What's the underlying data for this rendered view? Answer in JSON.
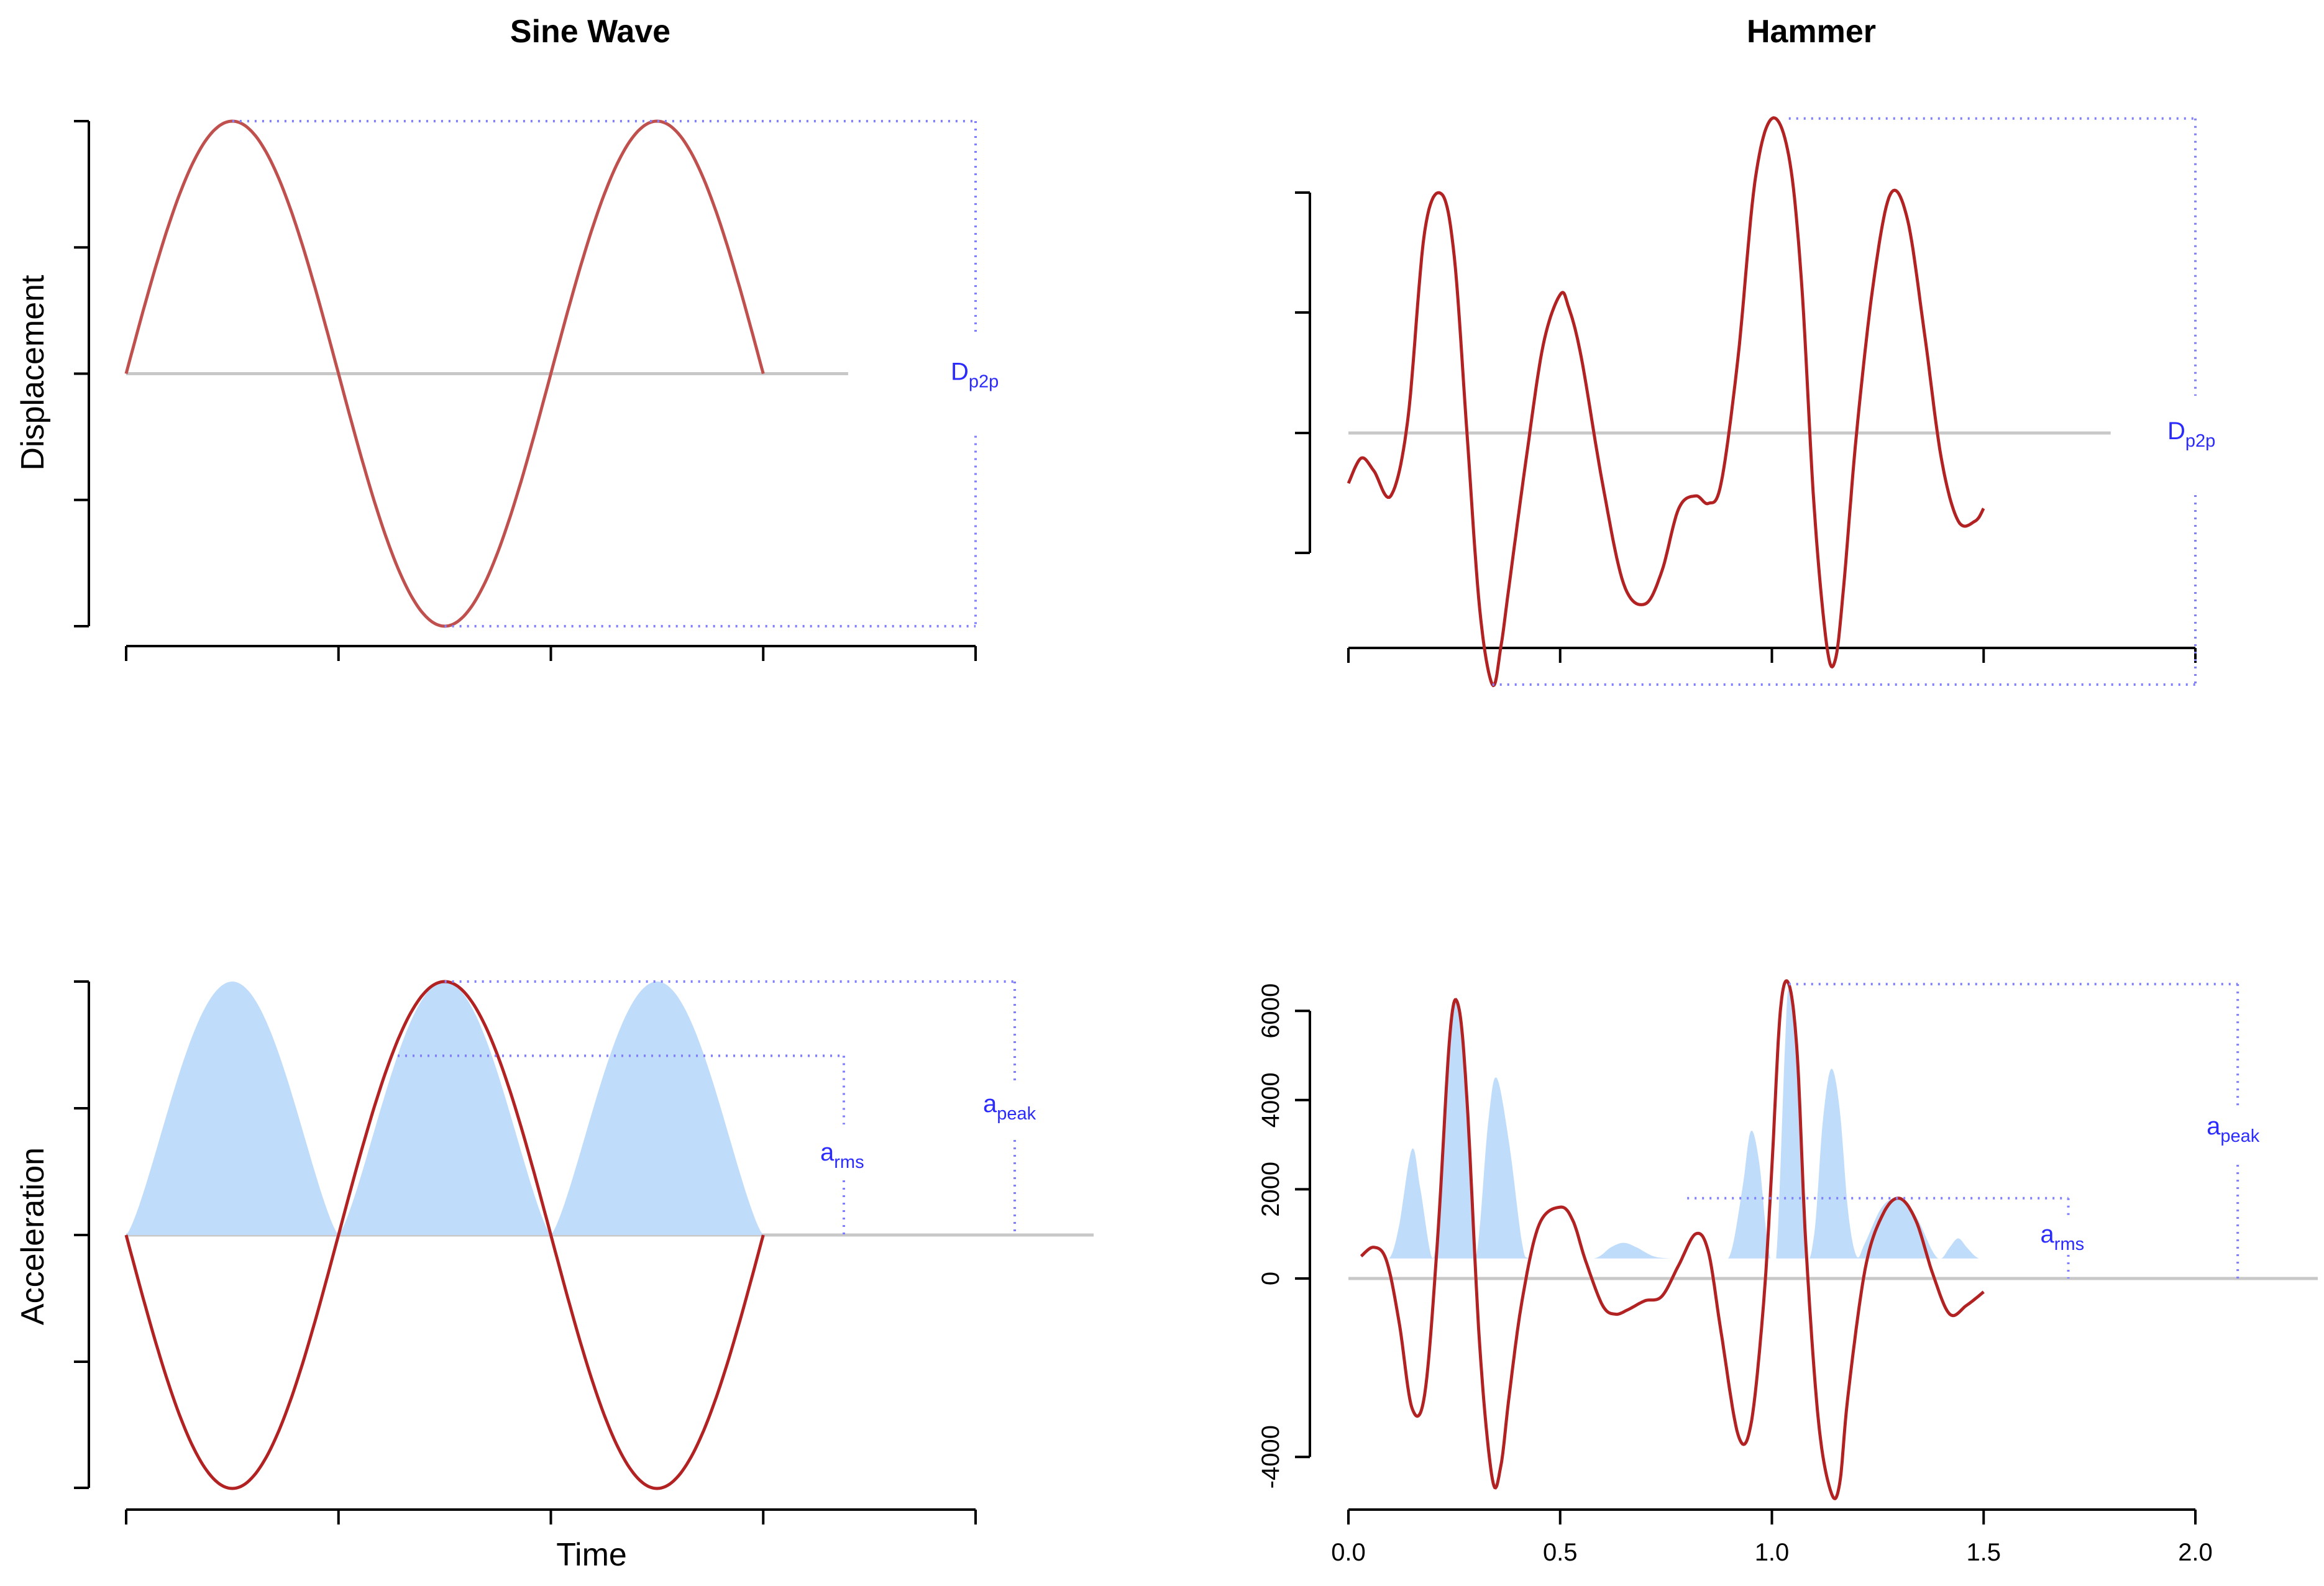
{
  "chart_data": [
    {
      "panel": "top-left",
      "type": "line",
      "title": "Sine Wave",
      "xlabel": "",
      "ylabel": "Displacement",
      "xlim": [
        0,
        2
      ],
      "ylim": [
        -1,
        1
      ],
      "series": [
        {
          "function": "sin",
          "cycles": 1.5,
          "x_range": [
            0,
            1.5
          ]
        }
      ],
      "baseline": 0,
      "annotations": [
        {
          "label": "D",
          "sub": "p2p",
          "kind": "peak-to-peak"
        }
      ]
    },
    {
      "panel": "top-right",
      "type": "line",
      "title": "Hammer",
      "xlabel": "",
      "ylabel": "",
      "xlim": [
        0,
        2
      ],
      "ylim": [
        -1,
        1
      ],
      "baseline": 0,
      "series": [
        {
          "x": [
            0.0,
            0.03,
            0.06,
            0.1,
            0.14,
            0.18,
            0.22,
            0.25,
            0.28,
            0.31,
            0.34,
            0.36,
            0.38,
            0.42,
            0.46,
            0.5,
            0.52,
            0.55,
            0.6,
            0.65,
            0.7,
            0.74,
            0.78,
            0.82,
            0.85,
            0.88,
            0.92,
            0.96,
            1.0,
            1.04,
            1.07,
            1.1,
            1.13,
            1.15,
            1.17,
            1.2,
            1.24,
            1.28,
            1.32,
            1.36,
            1.4,
            1.44,
            1.48,
            1.5
          ],
          "y": [
            -0.2,
            -0.1,
            -0.15,
            -0.25,
            0.05,
            0.8,
            0.95,
            0.7,
            0.0,
            -0.7,
            -1.0,
            -0.85,
            -0.6,
            -0.1,
            0.35,
            0.55,
            0.5,
            0.3,
            -0.2,
            -0.6,
            -0.68,
            -0.55,
            -0.3,
            -0.25,
            -0.28,
            -0.2,
            0.3,
            1.0,
            1.25,
            1.1,
            0.6,
            -0.3,
            -0.85,
            -0.9,
            -0.6,
            0.0,
            0.6,
            0.95,
            0.85,
            0.4,
            -0.1,
            -0.35,
            -0.35,
            -0.3
          ]
        }
      ],
      "annotations": [
        {
          "label": "D",
          "sub": "p2p",
          "kind": "peak-to-peak"
        }
      ]
    },
    {
      "panel": "bottom-left",
      "type": "area",
      "title": "",
      "xlabel": "Time",
      "ylabel": "Acceleration",
      "xlim": [
        0,
        2
      ],
      "ylim": [
        -1,
        1
      ],
      "baseline": 0,
      "series": [
        {
          "function": "-sin",
          "cycles": 1.5,
          "x_range": [
            0,
            1.5
          ],
          "kind": "line"
        },
        {
          "function": "sin^2",
          "x_range": [
            0,
            1.5
          ],
          "kind": "area"
        }
      ],
      "annotations": [
        {
          "label": "a",
          "sub": "rms",
          "value": 0.707
        },
        {
          "label": "a",
          "sub": "peak",
          "value": 1
        }
      ]
    },
    {
      "panel": "bottom-right",
      "type": "area",
      "title": "",
      "xlabel": "",
      "ylabel": "",
      "xlim": [
        0,
        2
      ],
      "ylim": [
        -5000,
        7000
      ],
      "xticks": [
        "0.0",
        "0.5",
        "1.0",
        "1.5",
        "2.0"
      ],
      "yticks": [
        "-4000",
        "0",
        "2000",
        "4000",
        "6000"
      ],
      "baseline": 0,
      "series": [
        {
          "kind": "line",
          "x": [
            0.03,
            0.06,
            0.09,
            0.12,
            0.15,
            0.18,
            0.21,
            0.24,
            0.26,
            0.28,
            0.31,
            0.34,
            0.36,
            0.38,
            0.41,
            0.45,
            0.5,
            0.53,
            0.56,
            0.6,
            0.63,
            0.66,
            0.7,
            0.74,
            0.78,
            0.82,
            0.85,
            0.88,
            0.92,
            0.95,
            0.98,
            1.0,
            1.02,
            1.04,
            1.06,
            1.08,
            1.11,
            1.14,
            1.16,
            1.18,
            1.22,
            1.26,
            1.3,
            1.34,
            1.38,
            1.42,
            1.46,
            1.5
          ],
          "y": [
            500,
            700,
            400,
            -1000,
            -2900,
            -2600,
            800,
            5500,
            6100,
            4000,
            -1500,
            -4500,
            -4200,
            -2600,
            -500,
            1200,
            1600,
            1300,
            400,
            -600,
            -800,
            -700,
            -500,
            -400,
            300,
            1000,
            600,
            -1200,
            -3500,
            -3300,
            -600,
            2500,
            6000,
            6600,
            5000,
            800,
            -3200,
            -4800,
            -4600,
            -2600,
            200,
            1400,
            1800,
            1300,
            100,
            -800,
            -600,
            -300
          ]
        },
        {
          "kind": "area",
          "base": 450,
          "x": [
            0.08,
            0.1,
            0.12,
            0.15,
            0.17,
            0.2,
            0.22,
            0.24,
            0.26,
            0.28,
            0.3,
            0.33,
            0.35,
            0.38,
            0.41,
            0.43,
            0.5,
            0.58,
            0.62,
            0.65,
            0.68,
            0.72,
            0.76,
            0.8,
            0.86,
            0.9,
            0.93,
            0.95,
            0.97,
            0.99,
            1.01,
            1.03,
            1.04,
            1.06,
            1.08,
            1.1,
            1.12,
            1.14,
            1.16,
            1.18,
            1.2,
            1.22,
            1.26,
            1.3,
            1.34,
            1.38,
            1.4,
            1.42,
            1.44,
            1.46,
            1.48,
            1.5
          ],
          "y": [
            450,
            500,
            1200,
            2900,
            2000,
            450,
            2500,
            5500,
            6200,
            4000,
            500,
            3500,
            4500,
            3000,
            800,
            450,
            450,
            450,
            700,
            800,
            700,
            500,
            450,
            450,
            450,
            500,
            2000,
            3300,
            2600,
            800,
            450,
            5000,
            6500,
            5200,
            800,
            1000,
            3500,
            4700,
            3800,
            1500,
            500,
            800,
            1600,
            1800,
            1400,
            600,
            450,
            700,
            900,
            700,
            500,
            400
          ]
        }
      ],
      "annotations": [
        {
          "label": "a",
          "sub": "rms",
          "value": 1800
        },
        {
          "label": "a",
          "sub": "peak",
          "value": 6600
        }
      ]
    }
  ]
}
